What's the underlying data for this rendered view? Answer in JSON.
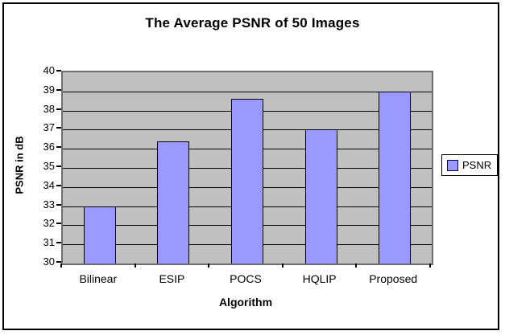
{
  "window": {
    "background": "#FFFFFF",
    "frame_border_color": "#000000"
  },
  "chart_data": {
    "type": "bar",
    "title": "The Average PSNR of 50 Images",
    "xlabel": "Algorithm",
    "ylabel": "PSNR in dB",
    "categories": [
      "Bilinear",
      "ESIP",
      "POCS",
      "HQLIP",
      "Proposed"
    ],
    "series": [
      {
        "name": "PSNR",
        "values": [
          33.0,
          36.4,
          38.6,
          37.0,
          39.0
        ]
      }
    ],
    "ylim": [
      30,
      40
    ],
    "ytick_step": 1,
    "grid": true,
    "legend": {
      "position": "right",
      "entries": [
        "PSNR"
      ]
    },
    "colors": {
      "bar_fill": "#9999FF",
      "bar_border": "#000000",
      "plot_bg": "#C0C0C0",
      "gridline": "#000000",
      "plot_border": "#6E6E6E",
      "tick": "#000000",
      "legend_bg": "#FFFFFF",
      "legend_border": "#000000",
      "text": "#000000"
    }
  }
}
